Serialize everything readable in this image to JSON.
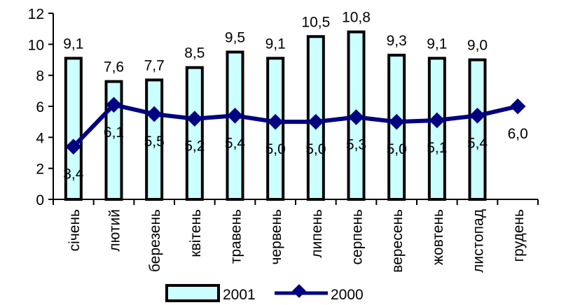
{
  "chart_data": {
    "type": "bar",
    "categories": [
      "січень",
      "лютий",
      "березень",
      "квітень",
      "травень",
      "червень",
      "липень",
      "серпень",
      "вересень",
      "жовтень",
      "листопад",
      "грудень"
    ],
    "series": [
      {
        "name": "2001",
        "type": "bar",
        "values": [
          9.1,
          7.6,
          7.7,
          8.5,
          9.5,
          9.1,
          10.5,
          10.8,
          9.3,
          9.1,
          9.0,
          null
        ],
        "labels": [
          "9,1",
          "7,6",
          "7,7",
          "8,5",
          "9,5",
          "9,1",
          "10,5",
          "10,8",
          "9,3",
          "9,1",
          "9,0",
          ""
        ],
        "fill": "#ccffff",
        "stroke": "#000000"
      },
      {
        "name": "2000",
        "type": "line",
        "values": [
          3.4,
          6.1,
          5.5,
          5.2,
          5.4,
          5.0,
          5.0,
          5.3,
          5.0,
          5.1,
          5.4,
          6.0
        ],
        "labels": [
          "3,4",
          "6,1",
          "5,5",
          "5,2",
          "5,4",
          "5,0",
          "5,0",
          "5,3",
          "5,0",
          "5,1",
          "5,4",
          "6,0"
        ],
        "color": "#000080"
      }
    ],
    "ylim": [
      0,
      12
    ],
    "yticks": [
      "0",
      "2",
      "4",
      "6",
      "8",
      "10",
      "12"
    ],
    "ytick_values": [
      0,
      2,
      4,
      6,
      8,
      10,
      12
    ],
    "grid": false,
    "legend": "bottom",
    "title": "",
    "xlabel": "",
    "ylabel": ""
  }
}
